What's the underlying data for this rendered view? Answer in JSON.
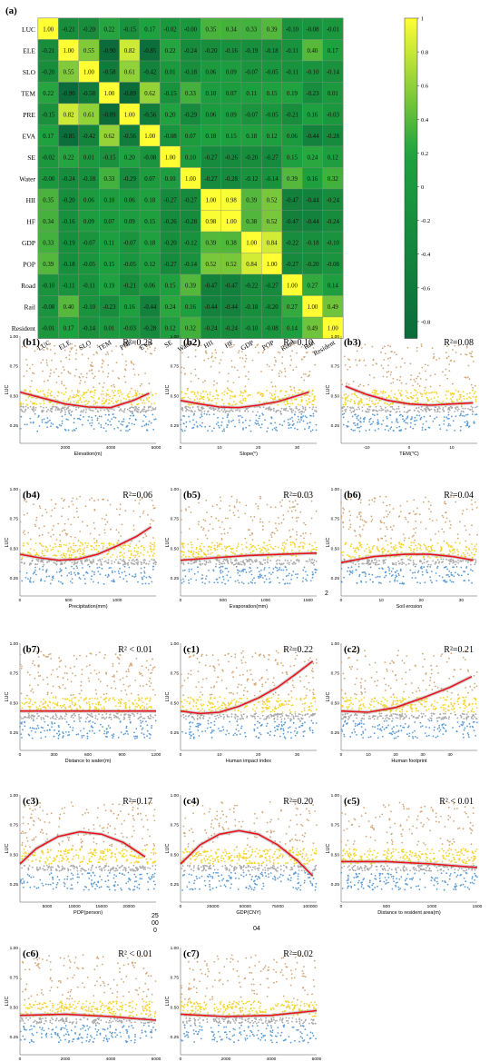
{
  "colors": {
    "high": "#ffff33",
    "mid": "#1fa23f",
    "low": "#0b6b3a",
    "scatter_top": "#d4a878",
    "scatter_upper": "#f5d22a",
    "scatter_mid": "#a9a9a9",
    "scatter_low": "#5b9bd5",
    "fit": "#e8141d",
    "ci": "#9e9e9e"
  },
  "chart_data": [
    {
      "type": "heatmap",
      "panel": "(a)",
      "variables": [
        "LUC",
        "ELE",
        "SLO",
        "TEM",
        "PRE",
        "EVA",
        "SE",
        "Water",
        "HII",
        "HF",
        "GDP",
        "POP",
        "Road",
        "Rail",
        "Resident"
      ],
      "matrix": [
        [
          "1.00",
          "-0.21",
          "-0.20",
          "0.22",
          "-0.15",
          "0.17",
          "-0.02",
          "-0.00",
          "0.35",
          "0.34",
          "0.33",
          "0.39",
          "-0.10",
          "-0.08",
          "-0.01"
        ],
        [
          "-0.21",
          "1.00",
          "0.55",
          "-0.90",
          "0.82",
          "-0.85",
          "0.22",
          "-0.24",
          "-0.20",
          "-0.16",
          "-0.19",
          "-0.18",
          "-0.11",
          "0.40",
          "0.17"
        ],
        [
          "-0.20",
          "0.55",
          "1.00",
          "-0.58",
          "0.61",
          "-0.42",
          "0.01",
          "-0.18",
          "0.06",
          "0.09",
          "-0.07",
          "-0.05",
          "-0.11",
          "-0.10",
          "-0.14"
        ],
        [
          "0.22",
          "-0.90",
          "-0.58",
          "1.00",
          "-0.89",
          "0.62",
          "-0.15",
          "0.33",
          "0.10",
          "0.07",
          "0.11",
          "0.15",
          "0.19",
          "-0.23",
          "0.01"
        ],
        [
          "-0.15",
          "0.82",
          "0.61",
          "-0.89",
          "1.00",
          "-0.56",
          "0.20",
          "-0.29",
          "0.06",
          "0.09",
          "-0.07",
          "-0.05",
          "-0.21",
          "0.16",
          "-0.03"
        ],
        [
          "0.17",
          "-0.85",
          "-0.42",
          "0.62",
          "-0.56",
          "1.00",
          "-0.08",
          "0.07",
          "0.18",
          "0.15",
          "0.18",
          "0.12",
          "0.06",
          "-0.44",
          "-0.28"
        ],
        [
          "-0.02",
          "0.22",
          "0.01",
          "-0.15",
          "0.20",
          "-0.08",
          "1.00",
          "0.10",
          "-0.27",
          "-0.26",
          "-0.20",
          "-0.27",
          "0.15",
          "0.24",
          "0.12"
        ],
        [
          "-0.00",
          "-0.24",
          "-0.18",
          "0.33",
          "-0.29",
          "0.07",
          "0.10",
          "1.00",
          "-0.27",
          "-0.28",
          "-0.12",
          "-0.14",
          "0.39",
          "0.16",
          "0.32"
        ],
        [
          "0.35",
          "-0.20",
          "0.06",
          "0.10",
          "0.06",
          "0.18",
          "-0.27",
          "-0.27",
          "1.00",
          "0.98",
          "0.39",
          "0.52",
          "-0.47",
          "-0.44",
          "-0.24"
        ],
        [
          "0.34",
          "-0.16",
          "0.09",
          "0.07",
          "0.09",
          "0.15",
          "-0.26",
          "-0.28",
          "0.98",
          "1.00",
          "0.38",
          "0.52",
          "-0.47",
          "-0.44",
          "-0.24"
        ],
        [
          "0.33",
          "-0.19",
          "-0.07",
          "0.11",
          "-0.07",
          "0.18",
          "-0.20",
          "-0.12",
          "0.39",
          "0.38",
          "1.00",
          "0.84",
          "-0.22",
          "-0.18",
          "-0.10"
        ],
        [
          "0.39",
          "-0.18",
          "-0.05",
          "0.15",
          "-0.05",
          "0.12",
          "-0.27",
          "-0.14",
          "0.52",
          "0.52",
          "0.84",
          "1.00",
          "-0.27",
          "-0.20",
          "-0.08"
        ],
        [
          "-0.10",
          "-0.11",
          "-0.11",
          "0.19",
          "-0.21",
          "0.06",
          "0.15",
          "0.39",
          "-0.47",
          "-0.47",
          "-0.22",
          "-0.27",
          "1.00",
          "0.27",
          "0.14"
        ],
        [
          "-0.08",
          "0.40",
          "-0.10",
          "-0.23",
          "0.16",
          "-0.44",
          "0.24",
          "0.16",
          "-0.44",
          "-0.44",
          "-0.18",
          "-0.20",
          "0.27",
          "1.00",
          "0.49"
        ],
        [
          "-0.01",
          "0.17",
          "-0.14",
          "0.01",
          "-0.03",
          "-0.28",
          "0.12",
          "0.32",
          "-0.24",
          "-0.24",
          "-0.10",
          "-0.08",
          "0.14",
          "0.49",
          "1.00"
        ]
      ],
      "colorbar_ticks": [
        "1",
        "0.8",
        "0.6",
        "0.4",
        "0.2",
        "0",
        "-0.2",
        "-0.4",
        "-0.6",
        "-0.8"
      ],
      "range": [
        -0.9,
        1.0
      ]
    },
    {
      "type": "scatter",
      "panel": "(b1)",
      "r2": "R²=0.23",
      "xlabel": "Elevation(m)",
      "ylabel": "LUC",
      "xticks": [
        "2000",
        "4000",
        "6000"
      ],
      "xlim": [
        0,
        6000
      ],
      "yticks": [
        "0.25",
        "0.50",
        "0.75",
        "1.00"
      ],
      "ylim": [
        0.1,
        1.0
      ],
      "fit": [
        [
          0,
          0.53
        ],
        [
          1000,
          0.48
        ],
        [
          2000,
          0.43
        ],
        [
          3000,
          0.405
        ],
        [
          4000,
          0.4
        ],
        [
          5000,
          0.46
        ],
        [
          5700,
          0.52
        ]
      ]
    },
    {
      "type": "scatter",
      "panel": "(b2)",
      "r2": "R²=0.10",
      "xlabel": "Slope(°)",
      "ylabel": "LUC",
      "xticks": [
        "0",
        "10",
        "20",
        "30"
      ],
      "xlim": [
        0,
        35
      ],
      "yticks": [
        "0.25",
        "0.50",
        "0.75",
        "1.00"
      ],
      "ylim": [
        0.1,
        1.0
      ],
      "fit": [
        [
          0,
          0.46
        ],
        [
          5,
          0.43
        ],
        [
          10,
          0.405
        ],
        [
          15,
          0.4
        ],
        [
          20,
          0.42
        ],
        [
          25,
          0.45
        ],
        [
          30,
          0.5
        ],
        [
          33,
          0.53
        ]
      ]
    },
    {
      "type": "scatter",
      "panel": "(b3)",
      "r2": "R²=0.08",
      "xlabel": "TEM(℃)",
      "ylabel": "LUC",
      "xticks": [
        "-10",
        "0",
        "10"
      ],
      "xlim": [
        -16,
        16
      ],
      "yticks": [
        "0.25",
        "0.50",
        "0.75",
        "1.00"
      ],
      "ylim": [
        0.1,
        1.0
      ],
      "fit": [
        [
          -15,
          0.58
        ],
        [
          -10,
          0.51
        ],
        [
          -5,
          0.46
        ],
        [
          0,
          0.43
        ],
        [
          5,
          0.42
        ],
        [
          10,
          0.43
        ],
        [
          15,
          0.44
        ]
      ]
    },
    {
      "type": "scatter",
      "panel": "(b4)",
      "r2": "R²=0.06",
      "xlabel": "Precipitation(mm)",
      "ylabel": "LUC",
      "xticks": [
        "0",
        "500",
        "1000"
      ],
      "xlim": [
        0,
        1400
      ],
      "yticks": [
        "0.25",
        "0.50",
        "0.75",
        "1.00"
      ],
      "ylim": [
        0.1,
        1.0
      ],
      "fit": [
        [
          0,
          0.45
        ],
        [
          200,
          0.42
        ],
        [
          400,
          0.4
        ],
        [
          600,
          0.41
        ],
        [
          800,
          0.45
        ],
        [
          1000,
          0.52
        ],
        [
          1200,
          0.6
        ],
        [
          1350,
          0.68
        ]
      ]
    },
    {
      "type": "scatter",
      "panel": "(b5)",
      "r2": "R²=0.03",
      "xlabel": "Evaporation(mm)",
      "ylabel": "LUC",
      "xticks": [
        "0",
        "500",
        "1000",
        "1500"
      ],
      "xlim": [
        0,
        1600
      ],
      "yticks": [
        "0.25",
        "0.50",
        "0.75",
        "1.00"
      ],
      "ylim": [
        0.1,
        1.0
      ],
      "fit": [
        [
          0,
          0.4
        ],
        [
          400,
          0.42
        ],
        [
          800,
          0.44
        ],
        [
          1200,
          0.45
        ],
        [
          1600,
          0.46
        ]
      ]
    },
    {
      "type": "scatter",
      "panel": "(b6)",
      "r2": "R²=0.04",
      "xlabel": "Soil erosion",
      "ylabel": "LUC",
      "xticks": [
        "0",
        "10",
        "20",
        "30"
      ],
      "xlim": [
        0,
        34
      ],
      "yticks": [
        "0.25",
        "0.50",
        "0.75",
        "1.00"
      ],
      "ylim": [
        0.1,
        1.0
      ],
      "fit": [
        [
          0,
          0.38
        ],
        [
          8,
          0.43
        ],
        [
          16,
          0.45
        ],
        [
          22,
          0.45
        ],
        [
          28,
          0.43
        ],
        [
          33,
          0.4
        ]
      ]
    },
    {
      "type": "scatter",
      "panel": "(b7)",
      "r2": "R² < 0.01",
      "xlabel": "Distance to water(m)",
      "ylabel": "LUC",
      "xticks": [
        "0",
        "300",
        "600",
        "900",
        "1200"
      ],
      "xlim": [
        0,
        1200
      ],
      "yticks": [
        "0.25",
        "0.50",
        "0.75",
        "1.00"
      ],
      "ylim": [
        0.1,
        1.0
      ],
      "fit": [
        [
          0,
          0.43
        ],
        [
          600,
          0.43
        ],
        [
          1200,
          0.43
        ]
      ]
    },
    {
      "type": "scatter",
      "panel": "(c1)",
      "r2": "R²=0.22",
      "xlabel": "Human impact index",
      "ylabel": "LUC",
      "xticks": [
        "0",
        "10",
        "20",
        "30"
      ],
      "xlim": [
        0,
        35
      ],
      "yticks": [
        "0.25",
        "0.50",
        "0.75",
        "1.00"
      ],
      "ylim": [
        0.1,
        1.0
      ],
      "fit": [
        [
          0,
          0.43
        ],
        [
          5,
          0.41
        ],
        [
          10,
          0.42
        ],
        [
          15,
          0.47
        ],
        [
          20,
          0.54
        ],
        [
          25,
          0.63
        ],
        [
          30,
          0.75
        ],
        [
          34,
          0.85
        ]
      ]
    },
    {
      "type": "scatter",
      "panel": "(c2)",
      "r2": "R²=0.21",
      "xlabel": "Human footprint",
      "ylabel": "LUC",
      "xticks": [
        "0",
        "10",
        "20",
        "30",
        "40"
      ],
      "xlim": [
        0,
        50
      ],
      "yticks": [
        "0.25",
        "0.50",
        "0.75",
        "1.00"
      ],
      "ylim": [
        0.1,
        1.0
      ],
      "fit": [
        [
          0,
          0.43
        ],
        [
          10,
          0.42
        ],
        [
          20,
          0.46
        ],
        [
          30,
          0.54
        ],
        [
          40,
          0.63
        ],
        [
          48,
          0.72
        ]
      ]
    },
    {
      "type": "scatter",
      "panel": "(c3)",
      "r2": "R²=0.17",
      "xlabel": "POP(person)",
      "ylabel": "LUC",
      "xticks": [
        "5000",
        "10000",
        "15000",
        "20000"
      ],
      "xlim": [
        0,
        25000
      ],
      "yticks": [
        "0.25",
        "0.50",
        "0.75",
        "1.00"
      ],
      "ylim": [
        0.1,
        1.0
      ],
      "fit": [
        [
          0,
          0.42
        ],
        [
          3000,
          0.55
        ],
        [
          7000,
          0.65
        ],
        [
          11000,
          0.69
        ],
        [
          15000,
          0.67
        ],
        [
          19000,
          0.6
        ],
        [
          23000,
          0.48
        ]
      ]
    },
    {
      "type": "scatter",
      "panel": "(c4)",
      "r2": "R²=0.20",
      "xlabel": "GDP(CNY)",
      "ylabel": "LUC",
      "xticks": [
        "0",
        "25000",
        "50000",
        "75000",
        "100000"
      ],
      "xlim": [
        0,
        105000
      ],
      "yticks": [
        "0.25",
        "0.50",
        "0.75",
        "1.00"
      ],
      "ylim": [
        0.1,
        1.0
      ],
      "fit": [
        [
          0,
          0.42
        ],
        [
          15000,
          0.58
        ],
        [
          30000,
          0.67
        ],
        [
          45000,
          0.7
        ],
        [
          60000,
          0.67
        ],
        [
          75000,
          0.58
        ],
        [
          90000,
          0.45
        ],
        [
          102000,
          0.32
        ]
      ]
    },
    {
      "type": "scatter",
      "panel": "(c5)",
      "r2": "R² < 0.01",
      "xlabel": "Distance to resident area(m)",
      "ylabel": "LUC",
      "xticks": [
        "0",
        "500",
        "1000",
        "1500"
      ],
      "xlim": [
        0,
        1500
      ],
      "yticks": [
        "0.25",
        "0.50",
        "0.75",
        "1.00"
      ],
      "ylim": [
        0.1,
        1.0
      ],
      "fit": [
        [
          0,
          0.44
        ],
        [
          500,
          0.44
        ],
        [
          1000,
          0.42
        ],
        [
          1500,
          0.39
        ]
      ]
    },
    {
      "type": "scatter",
      "panel": "(c6)",
      "r2": "R² < 0.01",
      "xlabel": "Distance to rail(m)",
      "ylabel": "LUC",
      "xticks": [
        "0",
        "2000",
        "4000",
        "6000"
      ],
      "xlim": [
        0,
        6000
      ],
      "yticks": [
        "0.25",
        "0.50",
        "0.75",
        "1.00"
      ],
      "ylim": [
        0.1,
        1.0
      ],
      "fit": [
        [
          0,
          0.43
        ],
        [
          2000,
          0.44
        ],
        [
          4000,
          0.42
        ],
        [
          6000,
          0.39
        ]
      ]
    },
    {
      "type": "scatter",
      "panel": "(c7)",
      "r2": "R²=0.02",
      "xlabel": "Distance to road(m)",
      "ylabel": "LUC",
      "xticks": [
        "0",
        "2000",
        "4000",
        "6000"
      ],
      "xlim": [
        0,
        6000
      ],
      "yticks": [
        "0.25",
        "0.50",
        "0.75",
        "1.00"
      ],
      "ylim": [
        0.1,
        1.0
      ],
      "fit": [
        [
          0,
          0.44
        ],
        [
          2000,
          0.42
        ],
        [
          4000,
          0.43
        ],
        [
          6000,
          0.47
        ]
      ]
    }
  ],
  "stray_text": {
    "b5_footnote": "2",
    "c3_tick_extra": "25",
    "c3_tick_extra2": "00",
    "c3_tick_extra3": "0",
    "c4_tick_extra": "04"
  }
}
